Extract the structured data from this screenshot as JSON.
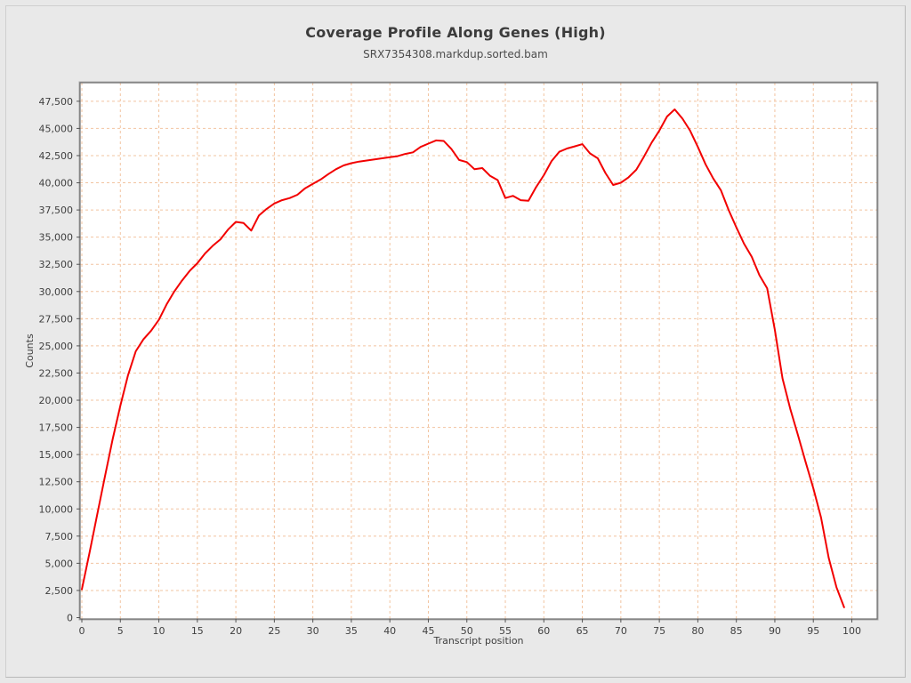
{
  "header": {
    "title": "Coverage Profile Along Genes (High)",
    "subtitle": "SRX7354308.markdup.sorted.bam"
  },
  "axes": {
    "x_label": "Transcript position",
    "y_label": "Counts",
    "x_ticks": [
      0,
      5,
      10,
      15,
      20,
      25,
      30,
      35,
      40,
      45,
      50,
      55,
      60,
      65,
      70,
      75,
      80,
      85,
      90,
      95,
      100
    ],
    "y_ticks": [
      0,
      2500,
      5000,
      7500,
      10000,
      12500,
      15000,
      17500,
      20000,
      22500,
      25000,
      27500,
      30000,
      32500,
      35000,
      37500,
      40000,
      42500,
      45000,
      47500
    ]
  },
  "colors": {
    "line": "#f20000",
    "grid": "#f2c4a0",
    "plot_background": "#ffffff",
    "page_background": "#e8e8e8",
    "plot_border": "#6e6e6e",
    "tick": "#555555",
    "tick_label": "#3f3f3f"
  },
  "chart_data": {
    "type": "line",
    "title": "Coverage Profile Along Genes (High)",
    "subtitle": "SRX7354308.markdup.sorted.bam",
    "xlabel": "Transcript position",
    "ylabel": "Counts",
    "xlim": [
      -0.3,
      103.4
    ],
    "ylim": [
      0,
      49200
    ],
    "grid": true,
    "legend": "none",
    "x": [
      0,
      1,
      2,
      3,
      4,
      5,
      6,
      7,
      8,
      9,
      10,
      11,
      12,
      13,
      14,
      15,
      16,
      17,
      18,
      19,
      20,
      21,
      22,
      23,
      24,
      25,
      26,
      27,
      28,
      29,
      30,
      31,
      32,
      33,
      34,
      35,
      36,
      37,
      38,
      39,
      40,
      41,
      42,
      43,
      44,
      45,
      46,
      47,
      48,
      49,
      50,
      51,
      52,
      53,
      54,
      55,
      56,
      57,
      58,
      59,
      60,
      61,
      62,
      63,
      64,
      65,
      66,
      67,
      68,
      69,
      70,
      71,
      72,
      73,
      74,
      75,
      76,
      77,
      78,
      79,
      80,
      81,
      82,
      83,
      84,
      85,
      86,
      87,
      88,
      89,
      90,
      91,
      92,
      93,
      94,
      95,
      96,
      97,
      98,
      99
    ],
    "series": [
      {
        "name": "SRX7354308.markdup.sorted.bam",
        "values": [
          2600,
          6000,
          9500,
          13000,
          16400,
          19500,
          22300,
          24500,
          25600,
          26400,
          27400,
          28800,
          30000,
          31000,
          31900,
          32600,
          33500,
          34200,
          34800,
          35700,
          36400,
          36300,
          35600,
          37000,
          37600,
          38100,
          38400,
          38600,
          38900,
          39500,
          39900,
          40300,
          40800,
          41250,
          41600,
          41800,
          41950,
          42050,
          42150,
          42250,
          42350,
          42450,
          42650,
          42800,
          43300,
          43600,
          43900,
          43850,
          43100,
          42100,
          41900,
          41250,
          41350,
          40650,
          40250,
          38600,
          38800,
          38400,
          38350,
          39600,
          40700,
          42000,
          42850,
          43150,
          43350,
          43550,
          42700,
          42250,
          40900,
          39800,
          40000,
          40500,
          41200,
          42400,
          43700,
          44800,
          46100,
          46750,
          45900,
          44800,
          43300,
          41700,
          40400,
          39300,
          37500,
          35900,
          34400,
          33200,
          31500,
          30300,
          26500,
          22000,
          19200,
          16800,
          14300,
          11900,
          9200,
          5500,
          2800,
          950
        ]
      }
    ]
  }
}
